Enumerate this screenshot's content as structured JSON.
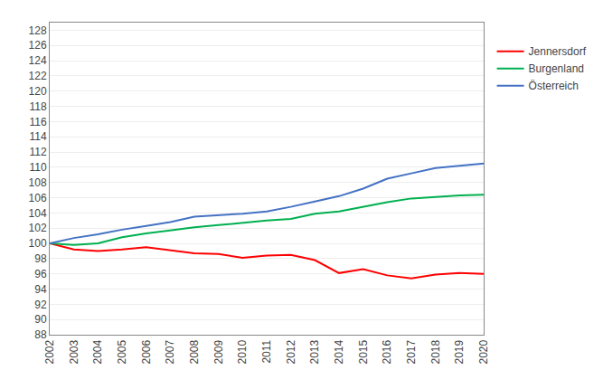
{
  "chart_data": {
    "type": "line",
    "x": [
      2002,
      2003,
      2004,
      2005,
      2006,
      2007,
      2008,
      2009,
      2010,
      2011,
      2012,
      2013,
      2014,
      2015,
      2016,
      2017,
      2018,
      2019,
      2020
    ],
    "series": [
      {
        "name": "Jennersdorf",
        "color": "#ff0000",
        "values": [
          100.0,
          99.2,
          99.0,
          99.2,
          99.5,
          99.1,
          98.7,
          98.6,
          98.1,
          98.4,
          98.5,
          97.8,
          96.1,
          96.6,
          95.8,
          95.4,
          95.9,
          96.1,
          96.0
        ]
      },
      {
        "name": "Burgenland",
        "color": "#00b050",
        "values": [
          100.0,
          99.8,
          100.0,
          100.8,
          101.3,
          101.7,
          102.1,
          102.4,
          102.7,
          103.0,
          103.2,
          103.9,
          104.2,
          104.8,
          105.4,
          105.9,
          106.1,
          106.3,
          106.4
        ]
      },
      {
        "name": "Österreich",
        "color": "#4472c4",
        "values": [
          100.0,
          100.7,
          101.2,
          101.8,
          102.3,
          102.8,
          103.5,
          103.7,
          103.9,
          104.2,
          104.8,
          105.5,
          106.2,
          107.2,
          108.5,
          109.2,
          109.9,
          110.2,
          110.5
        ]
      }
    ],
    "xlim": [
      2002,
      2020
    ],
    "xticks": [
      2002,
      2003,
      2004,
      2005,
      2006,
      2007,
      2008,
      2009,
      2010,
      2011,
      2012,
      2013,
      2014,
      2015,
      2016,
      2017,
      2018,
      2019,
      2020
    ],
    "ylim": [
      88,
      129
    ],
    "yticks": [
      88,
      90,
      92,
      94,
      96,
      98,
      100,
      102,
      104,
      106,
      108,
      110,
      112,
      114,
      116,
      118,
      120,
      122,
      124,
      126,
      128
    ],
    "grid": true,
    "legend": "right"
  }
}
